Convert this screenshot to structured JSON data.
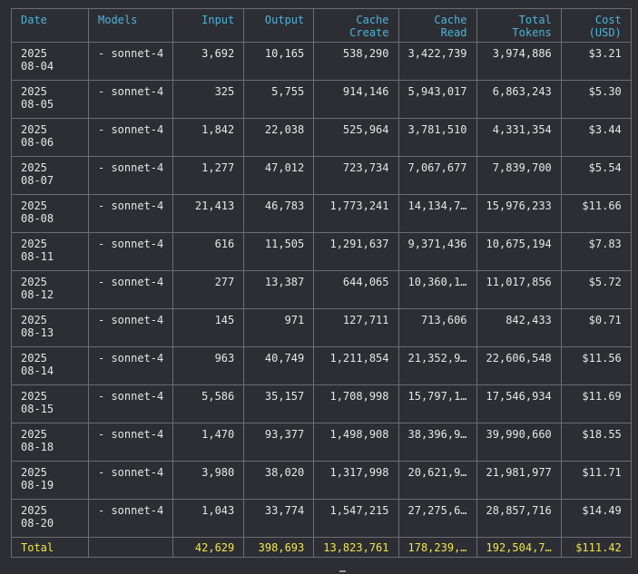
{
  "columns": [
    "Date",
    "Models",
    "Input",
    "Output",
    "Cache\nCreate",
    "Cache\nRead",
    "Total\nTokens",
    "Cost\n(USD)"
  ],
  "rows": [
    {
      "date1": "2025",
      "date2": "08-04",
      "model": "- sonnet-4",
      "input": "3,692",
      "output": "10,165",
      "cache_create": "538,290",
      "cache_read": "3,422,739",
      "total": "3,974,886",
      "cost": "$3.21"
    },
    {
      "date1": "2025",
      "date2": "08-05",
      "model": "- sonnet-4",
      "input": "325",
      "output": "5,755",
      "cache_create": "914,146",
      "cache_read": "5,943,017",
      "total": "6,863,243",
      "cost": "$5.30"
    },
    {
      "date1": "2025",
      "date2": "08-06",
      "model": "- sonnet-4",
      "input": "1,842",
      "output": "22,038",
      "cache_create": "525,964",
      "cache_read": "3,781,510",
      "total": "4,331,354",
      "cost": "$3.44"
    },
    {
      "date1": "2025",
      "date2": "08-07",
      "model": "- sonnet-4",
      "input": "1,277",
      "output": "47,012",
      "cache_create": "723,734",
      "cache_read": "7,067,677",
      "total": "7,839,700",
      "cost": "$5.54"
    },
    {
      "date1": "2025",
      "date2": "08-08",
      "model": "- sonnet-4",
      "input": "21,413",
      "output": "46,783",
      "cache_create": "1,773,241",
      "cache_read": "14,134,7…",
      "total": "15,976,233",
      "cost": "$11.66"
    },
    {
      "date1": "2025",
      "date2": "08-11",
      "model": "- sonnet-4",
      "input": "616",
      "output": "11,505",
      "cache_create": "1,291,637",
      "cache_read": "9,371,436",
      "total": "10,675,194",
      "cost": "$7.83"
    },
    {
      "date1": "2025",
      "date2": "08-12",
      "model": "- sonnet-4",
      "input": "277",
      "output": "13,387",
      "cache_create": "644,065",
      "cache_read": "10,360,1…",
      "total": "11,017,856",
      "cost": "$5.72"
    },
    {
      "date1": "2025",
      "date2": "08-13",
      "model": "- sonnet-4",
      "input": "145",
      "output": "971",
      "cache_create": "127,711",
      "cache_read": "713,606",
      "total": "842,433",
      "cost": "$0.71"
    },
    {
      "date1": "2025",
      "date2": "08-14",
      "model": "- sonnet-4",
      "input": "963",
      "output": "40,749",
      "cache_create": "1,211,854",
      "cache_read": "21,352,9…",
      "total": "22,606,548",
      "cost": "$11.56"
    },
    {
      "date1": "2025",
      "date2": "08-15",
      "model": "- sonnet-4",
      "input": "5,586",
      "output": "35,157",
      "cache_create": "1,708,998",
      "cache_read": "15,797,1…",
      "total": "17,546,934",
      "cost": "$11.69"
    },
    {
      "date1": "2025",
      "date2": "08-18",
      "model": "- sonnet-4",
      "input": "1,470",
      "output": "93,377",
      "cache_create": "1,498,908",
      "cache_read": "38,396,9…",
      "total": "39,990,660",
      "cost": "$18.55"
    },
    {
      "date1": "2025",
      "date2": "08-19",
      "model": "- sonnet-4",
      "input": "3,980",
      "output": "38,020",
      "cache_create": "1,317,998",
      "cache_read": "20,621,9…",
      "total": "21,981,977",
      "cost": "$11.71"
    },
    {
      "date1": "2025",
      "date2": "08-20",
      "model": "- sonnet-4",
      "input": "1,043",
      "output": "33,774",
      "cache_create": "1,547,215",
      "cache_read": "27,275,6…",
      "total": "28,857,716",
      "cost": "$14.49"
    }
  ],
  "totals": {
    "label": "Total",
    "model": "",
    "input": "42,629",
    "output": "398,693",
    "cache_create": "13,823,761",
    "cache_read": "178,239,…",
    "total": "192,504,7…",
    "cost": "$111.42"
  },
  "colors": {
    "header": "#4fb3d9",
    "totals": "#f2e64a",
    "text": "#e6e6e6",
    "border": "#6a6d73",
    "background": "#2c2e33"
  }
}
